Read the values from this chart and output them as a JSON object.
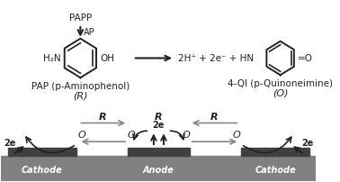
{
  "bg_color": "#ffffff",
  "electrode_color": "#404040",
  "substrate_color": "#808080",
  "dark_color": "#222222",
  "gray_arrow_color": "#888888",
  "fig_width": 3.78,
  "fig_height": 2.03,
  "dpi": 100,
  "cathode_label": "Cathode",
  "anode_label": "Anode",
  "pap_label": "PAP (p-Aminophenol)",
  "pap_sub": "(R)",
  "qi_label": "4-QI (p-Quinoneimine)",
  "qi_sub": "(O)",
  "papp_label": "PAPP",
  "ap_label": "AP"
}
